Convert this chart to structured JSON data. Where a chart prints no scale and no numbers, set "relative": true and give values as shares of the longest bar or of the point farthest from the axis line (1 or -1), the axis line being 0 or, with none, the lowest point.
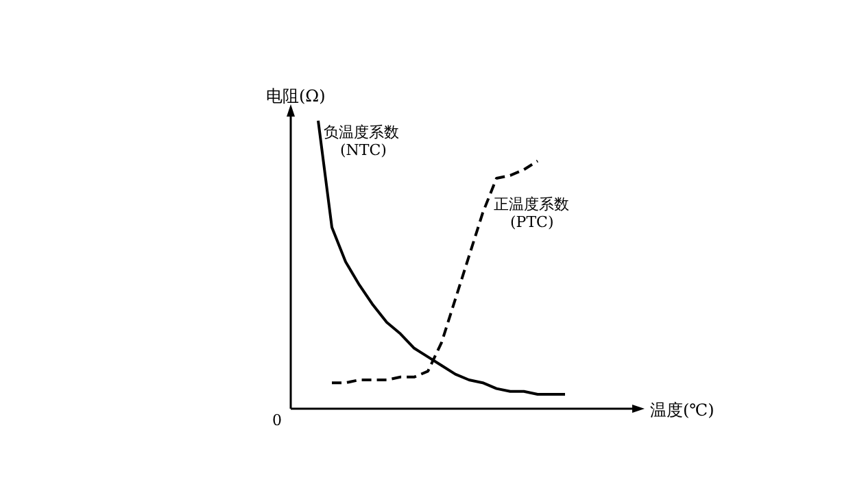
{
  "chart_data": {
    "type": "line",
    "relative": true,
    "xlabel": "温度(℃)",
    "ylabel": "电阻(Ω)",
    "annotations": [
      "0"
    ],
    "categories": [
      null,
      null,
      null,
      null,
      null,
      null,
      null,
      null,
      null,
      null,
      null,
      null,
      null,
      null,
      null,
      null,
      null,
      null,
      null
    ],
    "series": [
      {
        "name": "负温度系数\n(NTC)",
        "color": "#000000",
        "line_style": "solid",
        "values": [
          1.0,
          0.63,
          0.51,
          0.43,
          0.36,
          0.3,
          0.26,
          0.21,
          0.18,
          0.15,
          0.12,
          0.1,
          0.09,
          0.07,
          0.06,
          0.06,
          0.05,
          0.05,
          0.05
        ]
      },
      {
        "name": "正温度系数\n(PTC)",
        "color": "#000000",
        "line_style": "dashed",
        "values": [
          null,
          0.09,
          0.09,
          0.1,
          0.1,
          0.1,
          0.11,
          0.11,
          0.13,
          0.23,
          0.38,
          0.53,
          0.68,
          0.8,
          0.81,
          0.83,
          0.86,
          null,
          null
        ]
      }
    ],
    "grid": false
  }
}
